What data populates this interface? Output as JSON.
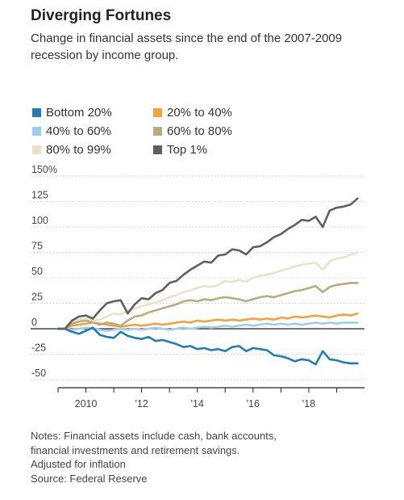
{
  "title": "Diverging Fortunes",
  "subtitle": "Change in financial assets since the end of the 2007-2009 recession by income group.",
  "notes": [
    "Notes: Financial assets include cash, bank accounts,",
    "financial investments and retirement savings.",
    "Adjusted for inflation",
    "Source: Federal Reserve"
  ],
  "chart_data": {
    "type": "line",
    "title": "Diverging Fortunes",
    "ylim": [
      -50,
      150
    ],
    "y_ticks": [
      -50,
      -25,
      0,
      25,
      50,
      75,
      100,
      125,
      150
    ],
    "y_tick_labels": [
      "-50",
      "-25",
      "0",
      "25",
      "50",
      "75",
      "100",
      "125",
      "150%"
    ],
    "xlim": [
      2009.0,
      2020.0
    ],
    "x_ticks": [
      2010,
      2012,
      2014,
      2016,
      2018
    ],
    "x_tick_labels": [
      "2010",
      "'12",
      "'14",
      "'16",
      "'18"
    ],
    "x_minor_ticks": [
      2009,
      2011,
      2013,
      2015,
      2017,
      2019
    ],
    "legend_position": "top-left",
    "series": [
      {
        "name": "Bottom 20%",
        "color": "#1f7fb4",
        "x": [
          2009.25,
          2009.5,
          2009.75,
          2010.0,
          2010.25,
          2010.5,
          2010.75,
          2011.0,
          2011.25,
          2011.5,
          2011.75,
          2012.0,
          2012.25,
          2012.5,
          2012.75,
          2013.0,
          2013.25,
          2013.5,
          2013.75,
          2014.0,
          2014.25,
          2014.5,
          2014.75,
          2015.0,
          2015.25,
          2015.5,
          2015.75,
          2016.0,
          2016.25,
          2016.5,
          2016.75,
          2017.0,
          2017.25,
          2017.5,
          2017.75,
          2018.0,
          2018.25,
          2018.5,
          2018.75,
          2019.0,
          2019.25,
          2019.5,
          2019.75
        ],
        "y": [
          0,
          -3,
          -5,
          -2,
          1,
          -6,
          -8,
          -9,
          -3,
          -7,
          -9,
          -10,
          -8,
          -12,
          -11,
          -13,
          -15,
          -18,
          -17,
          -20,
          -19,
          -21,
          -20,
          -22,
          -18,
          -17,
          -22,
          -19,
          -20,
          -21,
          -26,
          -27,
          -29,
          -32,
          -30,
          -31,
          -35,
          -22,
          -30,
          -31,
          -33,
          -34,
          -34
        ]
      },
      {
        "name": "20% to 40%",
        "color": "#f3a33b",
        "x": [
          2009.25,
          2009.5,
          2009.75,
          2010.0,
          2010.25,
          2010.5,
          2010.75,
          2011.0,
          2011.25,
          2011.5,
          2011.75,
          2012.0,
          2012.25,
          2012.5,
          2012.75,
          2013.0,
          2013.25,
          2013.5,
          2013.75,
          2014.0,
          2014.25,
          2014.5,
          2014.75,
          2015.0,
          2015.25,
          2015.5,
          2015.75,
          2016.0,
          2016.25,
          2016.5,
          2016.75,
          2017.0,
          2017.25,
          2017.5,
          2017.75,
          2018.0,
          2018.25,
          2018.5,
          2018.75,
          2019.0,
          2019.25,
          2019.5,
          2019.75
        ],
        "y": [
          0,
          3,
          4,
          5,
          6,
          5,
          4,
          3,
          2,
          3,
          4,
          3,
          4,
          5,
          4,
          5,
          6,
          7,
          6,
          8,
          7,
          8,
          9,
          8,
          9,
          8,
          9,
          10,
          9,
          10,
          9,
          11,
          10,
          12,
          11,
          12,
          13,
          12,
          11,
          13,
          14,
          13,
          15
        ]
      },
      {
        "name": "40% to 60%",
        "color": "#9ccfee",
        "x": [
          2009.25,
          2009.5,
          2009.75,
          2010.0,
          2010.25,
          2010.5,
          2010.75,
          2011.0,
          2011.25,
          2011.5,
          2011.75,
          2012.0,
          2012.25,
          2012.5,
          2012.75,
          2013.0,
          2013.25,
          2013.5,
          2013.75,
          2014.0,
          2014.25,
          2014.5,
          2014.75,
          2015.0,
          2015.25,
          2015.5,
          2015.75,
          2016.0,
          2016.25,
          2016.5,
          2016.75,
          2017.0,
          2017.25,
          2017.5,
          2017.75,
          2018.0,
          2018.25,
          2018.5,
          2018.75,
          2019.0,
          2019.25,
          2019.5,
          2019.75
        ],
        "y": [
          0,
          -1,
          0,
          1,
          0,
          -1,
          -2,
          -1,
          0,
          -1,
          0,
          -1,
          0,
          1,
          0,
          -1,
          0,
          1,
          0,
          1,
          2,
          1,
          2,
          3,
          2,
          3,
          4,
          3,
          4,
          5,
          4,
          5,
          4,
          5,
          4,
          5,
          6,
          5,
          6,
          5,
          6,
          6,
          6
        ]
      },
      {
        "name": "60% to 80%",
        "color": "#b7ad7e",
        "x": [
          2009.25,
          2009.5,
          2009.75,
          2010.0,
          2010.25,
          2010.5,
          2010.75,
          2011.0,
          2011.25,
          2011.5,
          2011.75,
          2012.0,
          2012.25,
          2012.5,
          2012.75,
          2013.0,
          2013.25,
          2013.5,
          2013.75,
          2014.0,
          2014.25,
          2014.5,
          2014.75,
          2015.0,
          2015.25,
          2015.5,
          2015.75,
          2016.0,
          2016.25,
          2016.5,
          2016.75,
          2017.0,
          2017.25,
          2017.5,
          2017.75,
          2018.0,
          2018.25,
          2018.5,
          2018.75,
          2019.0,
          2019.25,
          2019.5,
          2019.75
        ],
        "y": [
          0,
          5,
          7,
          8,
          6,
          4,
          6,
          5,
          3,
          8,
          12,
          13,
          16,
          18,
          20,
          22,
          24,
          27,
          28,
          27,
          29,
          28,
          30,
          31,
          30,
          29,
          27,
          29,
          31,
          32,
          31,
          33,
          35,
          37,
          38,
          40,
          42,
          36,
          41,
          43,
          44,
          45,
          45
        ]
      },
      {
        "name": "80% to 99%",
        "color": "#e8e3c8",
        "x": [
          2009.25,
          2009.5,
          2009.75,
          2010.0,
          2010.25,
          2010.5,
          2010.75,
          2011.0,
          2011.25,
          2011.5,
          2011.75,
          2012.0,
          2012.25,
          2012.5,
          2012.75,
          2013.0,
          2013.25,
          2013.5,
          2013.75,
          2014.0,
          2014.25,
          2014.5,
          2014.75,
          2015.0,
          2015.25,
          2015.5,
          2015.75,
          2016.0,
          2016.25,
          2016.5,
          2016.75,
          2017.0,
          2017.25,
          2017.5,
          2017.75,
          2018.0,
          2018.25,
          2018.5,
          2018.75,
          2019.0,
          2019.25,
          2019.5,
          2019.75
        ],
        "y": [
          0,
          6,
          9,
          10,
          8,
          9,
          12,
          15,
          14,
          18,
          20,
          22,
          24,
          26,
          28,
          31,
          33,
          36,
          38,
          40,
          42,
          41,
          43,
          47,
          46,
          48,
          46,
          50,
          52,
          53,
          55,
          57,
          59,
          61,
          63,
          64,
          65,
          58,
          66,
          69,
          70,
          73,
          75
        ]
      },
      {
        "name": "Top 1%",
        "color": "#5f5f5f",
        "x": [
          2009.25,
          2009.5,
          2009.75,
          2010.0,
          2010.25,
          2010.5,
          2010.75,
          2011.0,
          2011.25,
          2011.5,
          2011.75,
          2012.0,
          2012.25,
          2012.5,
          2012.75,
          2013.0,
          2013.25,
          2013.5,
          2013.75,
          2014.0,
          2014.25,
          2014.5,
          2014.75,
          2015.0,
          2015.25,
          2015.5,
          2015.75,
          2016.0,
          2016.25,
          2016.5,
          2016.75,
          2017.0,
          2017.25,
          2017.5,
          2017.75,
          2018.0,
          2018.25,
          2018.5,
          2018.75,
          2019.0,
          2019.25,
          2019.5,
          2019.75
        ],
        "y": [
          0,
          8,
          12,
          13,
          10,
          18,
          25,
          27,
          28,
          15,
          24,
          30,
          29,
          35,
          38,
          45,
          47,
          53,
          58,
          62,
          66,
          65,
          72,
          73,
          78,
          77,
          73,
          80,
          81,
          85,
          90,
          93,
          98,
          102,
          107,
          106,
          110,
          100,
          116,
          119,
          120,
          122,
          128
        ]
      }
    ]
  }
}
